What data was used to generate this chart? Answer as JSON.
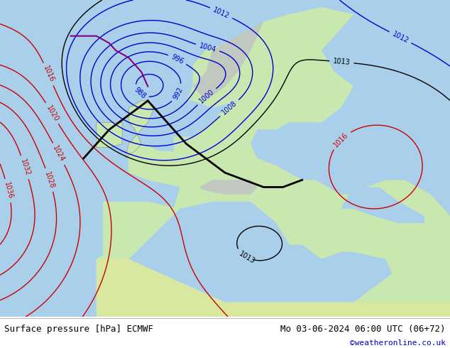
{
  "bottom_left_text": "Surface pressure [hPa] ECMWF",
  "bottom_right_text": "Mo 03-06-2024 06:00 UTC (06+72)",
  "bottom_right_text2": "©weatheronline.co.uk",
  "bottom_right_color": "#0000cc",
  "fig_width": 6.34,
  "fig_height": 4.9,
  "map_bg": "#b8ddb8",
  "bottom_bar_color": "#e8e8e8",
  "text_color": "#000000",
  "dpi": 100,
  "low_color": "#0000cc",
  "high_color": "#cc0000",
  "front_color": "#000000",
  "label_fontsize": 7,
  "isobar_linewidth": 1.0
}
